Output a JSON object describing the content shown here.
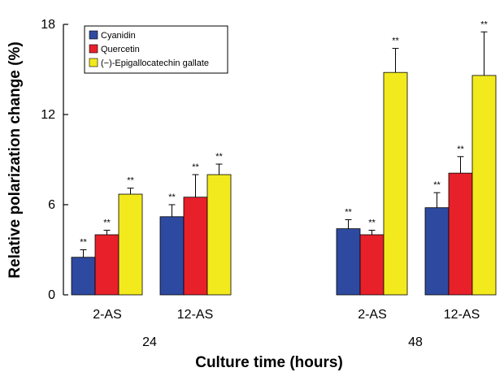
{
  "chart_data": {
    "type": "bar",
    "ylabel": "Relative polarization change (%)",
    "xlabel": "Culture time (hours)",
    "ylim": [
      0,
      18
    ],
    "yticks": [
      "0",
      "6",
      "12",
      "18"
    ],
    "time_groups": [
      {
        "label": "24",
        "subgroups": [
          {
            "label": "2-AS",
            "values": [
              2.5,
              4.0,
              6.7
            ],
            "errors": [
              0.5,
              0.3,
              0.4
            ],
            "sig": [
              "**",
              "**",
              "**"
            ]
          },
          {
            "label": "12-AS",
            "values": [
              5.2,
              6.5,
              8.0
            ],
            "errors": [
              0.8,
              1.5,
              0.7
            ],
            "sig": [
              "**",
              "**",
              "**"
            ]
          }
        ]
      },
      {
        "label": "48",
        "subgroups": [
          {
            "label": "2-AS",
            "values": [
              4.4,
              4.0,
              14.8
            ],
            "errors": [
              0.6,
              0.3,
              1.6
            ],
            "sig": [
              "**",
              "**",
              "**"
            ]
          },
          {
            "label": "12-AS",
            "values": [
              5.8,
              8.1,
              14.6
            ],
            "errors": [
              1.0,
              1.1,
              2.9
            ],
            "sig": [
              "**",
              "**",
              "**"
            ]
          }
        ]
      }
    ],
    "series": [
      {
        "name": "Cyanidin",
        "color": "#2e4aa0"
      },
      {
        "name": "Quercetin",
        "color": "#e8202a"
      },
      {
        "name": "(−)-Epigallocatechin gallate",
        "color": "#f2ea1d"
      }
    ],
    "legend_position": "top-left",
    "grid": false
  }
}
